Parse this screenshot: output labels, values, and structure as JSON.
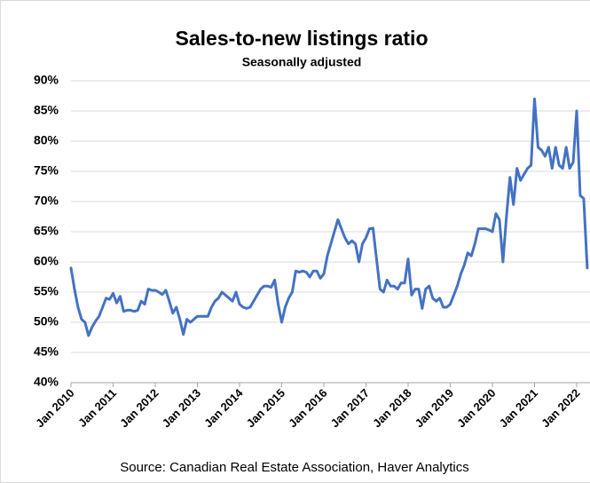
{
  "chart_data": {
    "type": "line",
    "title": "Sales-to-new listings ratio",
    "subtitle": "Seasonally adjusted",
    "source": "Source: Canadian Real Estate Association, Haver Analytics",
    "categories": [
      "Jan 2010",
      null,
      null,
      null,
      null,
      null,
      null,
      null,
      null,
      null,
      null,
      null,
      "Jan 2011",
      null,
      null,
      null,
      null,
      null,
      null,
      null,
      null,
      null,
      null,
      null,
      "Jan 2012",
      null,
      null,
      null,
      null,
      null,
      null,
      null,
      null,
      null,
      null,
      null,
      "Jan 2013",
      null,
      null,
      null,
      null,
      null,
      null,
      null,
      null,
      null,
      null,
      null,
      "Jan 2014",
      null,
      null,
      null,
      null,
      null,
      null,
      null,
      null,
      null,
      null,
      null,
      "Jan 2015",
      null,
      null,
      null,
      null,
      null,
      null,
      null,
      null,
      null,
      null,
      null,
      "Jan 2016",
      null,
      null,
      null,
      null,
      null,
      null,
      null,
      null,
      null,
      null,
      null,
      "Jan 2017",
      null,
      null,
      null,
      null,
      null,
      null,
      null,
      null,
      null,
      null,
      null,
      "Jan 2018",
      null,
      null,
      null,
      null,
      null,
      null,
      null,
      null,
      null,
      null,
      null,
      "Jan 2019",
      null,
      null,
      null,
      null,
      null,
      null,
      null,
      null,
      null,
      null,
      null,
      "Jan 2020",
      null,
      null,
      null,
      null,
      null,
      null,
      null,
      null,
      null,
      null,
      null,
      "Jan 2021",
      null,
      null,
      null,
      null,
      null,
      null,
      null,
      null,
      null,
      null,
      null,
      "Jan 2022",
      null,
      null,
      null
    ],
    "series": [
      {
        "name": "Sales-to-new listings ratio",
        "color": "#4472c4",
        "values": [
          59,
          55.5,
          52.5,
          50.5,
          50,
          47.8,
          49.2,
          50.2,
          51,
          52.5,
          54,
          53.8,
          54.8,
          53.2,
          54.3,
          51.8,
          52,
          52,
          51.8,
          52,
          53.5,
          53,
          55.5,
          55.3,
          55.3,
          55,
          54.6,
          55.3,
          53.5,
          51.5,
          52.5,
          50.5,
          48,
          50.5,
          50,
          50.5,
          51,
          51,
          51,
          51,
          52.5,
          53.5,
          54,
          55,
          54.5,
          54,
          53.5,
          55,
          53,
          52.5,
          52.3,
          52.5,
          53.5,
          54.5,
          55.5,
          56,
          56,
          55.8,
          57,
          53,
          50,
          52.5,
          54,
          55,
          58.5,
          58.3,
          58.5,
          58.3,
          57.5,
          58.5,
          58.5,
          57.3,
          58,
          61,
          63,
          65,
          67,
          65.5,
          64,
          63,
          63.5,
          63,
          60,
          63,
          64,
          65.5,
          65.6,
          60.5,
          55.5,
          55,
          57,
          56,
          56,
          55.5,
          56.5,
          56.5,
          60.5,
          54.5,
          55.5,
          55.5,
          52.3,
          55.5,
          56,
          54,
          53.5,
          54,
          52.5,
          52.5,
          53,
          54.5,
          56,
          58,
          59.5,
          61.5,
          61,
          63,
          65.5,
          65.5,
          65.5,
          65.3,
          65,
          68,
          67,
          60,
          67.5,
          74,
          69.5,
          75.5,
          73.5,
          74.5,
          75.5,
          76,
          87,
          79,
          78.5,
          77.5,
          79,
          75.5,
          79,
          76,
          75.5,
          79,
          75.5,
          76.5,
          85,
          71,
          70.5,
          59
        ]
      }
    ],
    "ylim": [
      40,
      90
    ],
    "yticks": [
      {
        "value": 40,
        "label": "40%"
      },
      {
        "value": 45,
        "label": "45%"
      },
      {
        "value": 50,
        "label": "50%"
      },
      {
        "value": 55,
        "label": "55%"
      },
      {
        "value": 60,
        "label": "60%"
      },
      {
        "value": 65,
        "label": "65%"
      },
      {
        "value": 70,
        "label": "70%"
      },
      {
        "value": 75,
        "label": "75%"
      },
      {
        "value": 80,
        "label": "80%"
      },
      {
        "value": 85,
        "label": "85%"
      },
      {
        "value": 90,
        "label": "90%"
      }
    ],
    "grid": true
  }
}
